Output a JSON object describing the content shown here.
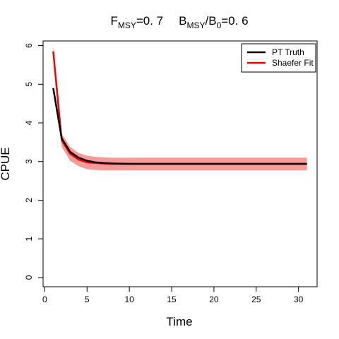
{
  "chart_data": {
    "type": "line",
    "title": {
      "f_main": "F",
      "f_sub": "MSY",
      "f_value": "=0. 7",
      "b_main": "B",
      "b_sub": "MSY",
      "b_slash": "/B",
      "b_sub0": "0",
      "b_value": "=0. 6"
    },
    "xlabel": "Time",
    "ylabel": "CPUE",
    "xlim": [
      -0.2,
      32.2
    ],
    "ylim": [
      -0.24,
      6.12
    ],
    "xticks": [
      0,
      5,
      10,
      15,
      20,
      25,
      30
    ],
    "yticks": [
      0,
      1,
      2,
      3,
      4,
      5,
      6
    ],
    "grid": false,
    "legend_position": "top-right",
    "x": [
      1,
      2,
      3,
      4,
      5,
      6,
      7,
      8,
      9,
      10,
      11,
      12,
      13,
      14,
      15,
      16,
      17,
      18,
      19,
      20,
      21,
      22,
      23,
      24,
      25,
      26,
      27,
      28,
      29,
      30,
      31
    ],
    "series": [
      {
        "name": "PT Truth",
        "color": "#000000",
        "values": [
          4.9,
          3.6,
          3.25,
          3.1,
          3.02,
          2.98,
          2.96,
          2.95,
          2.945,
          2.94,
          2.94,
          2.94,
          2.94,
          2.94,
          2.94,
          2.94,
          2.94,
          2.94,
          2.94,
          2.94,
          2.94,
          2.94,
          2.94,
          2.94,
          2.94,
          2.94,
          2.94,
          2.94,
          2.94,
          2.94,
          2.94
        ]
      },
      {
        "name": "Shaefer Fit",
        "color": "#ee0000",
        "values": [
          5.85,
          3.55,
          3.2,
          3.05,
          2.98,
          2.96,
          2.95,
          2.94,
          2.94,
          2.94,
          2.94,
          2.94,
          2.94,
          2.94,
          2.94,
          2.94,
          2.94,
          2.94,
          2.94,
          2.94,
          2.94,
          2.94,
          2.94,
          2.94,
          2.94,
          2.94,
          2.94,
          2.94,
          2.94,
          2.94,
          2.94
        ],
        "band_upper": [
          6.0,
          3.72,
          3.38,
          3.22,
          3.15,
          3.12,
          3.11,
          3.1,
          3.1,
          3.1,
          3.1,
          3.1,
          3.1,
          3.1,
          3.1,
          3.1,
          3.1,
          3.1,
          3.1,
          3.1,
          3.1,
          3.1,
          3.1,
          3.1,
          3.1,
          3.1,
          3.1,
          3.1,
          3.1,
          3.1,
          3.1
        ],
        "band_lower": [
          5.7,
          3.38,
          3.02,
          2.88,
          2.8,
          2.78,
          2.77,
          2.77,
          2.77,
          2.77,
          2.77,
          2.77,
          2.77,
          2.77,
          2.77,
          2.77,
          2.77,
          2.77,
          2.77,
          2.77,
          2.77,
          2.77,
          2.77,
          2.77,
          2.77,
          2.77,
          2.77,
          2.77,
          2.77,
          2.77,
          2.77
        ],
        "band_color": "#f89a9a"
      }
    ]
  }
}
